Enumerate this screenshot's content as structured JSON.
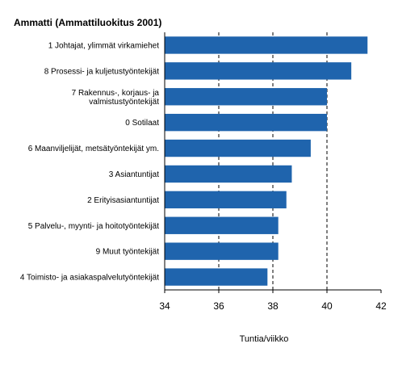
{
  "chart_data": {
    "type": "bar",
    "orientation": "horizontal",
    "title": "Ammatti (Ammattiluokitus 2001)",
    "xlabel": "Tuntia/viikko",
    "ylabel": "",
    "xlim": [
      34,
      42
    ],
    "xticks": [
      "34",
      "36",
      "38",
      "40",
      "42"
    ],
    "grid": "vertical-dashed",
    "bar_color": "#1f64ad",
    "categories": [
      [
        "1 Johtajat, ylimmät virkamiehet"
      ],
      [
        "8 Prosessi- ja kuljetustyöntekijät"
      ],
      [
        "7 Rakennus-, korjaus- ja",
        "valmistustyöntekijät"
      ],
      [
        "0 Sotilaat"
      ],
      [
        "6 Maanviljelijät, metsätyöntekijät ym."
      ],
      [
        "3 Asiantuntijat"
      ],
      [
        "2 Erityisasiantuntijat"
      ],
      [
        "5 Palvelu-, myynti- ja hoitotyöntekijät"
      ],
      [
        "9 Muut työntekijät"
      ],
      [
        "4 Toimisto- ja asiakaspalvelutyöntekijät"
      ]
    ],
    "values": [
      41.5,
      40.9,
      40.0,
      40.0,
      39.4,
      38.7,
      38.5,
      38.2,
      38.2,
      37.8
    ]
  }
}
